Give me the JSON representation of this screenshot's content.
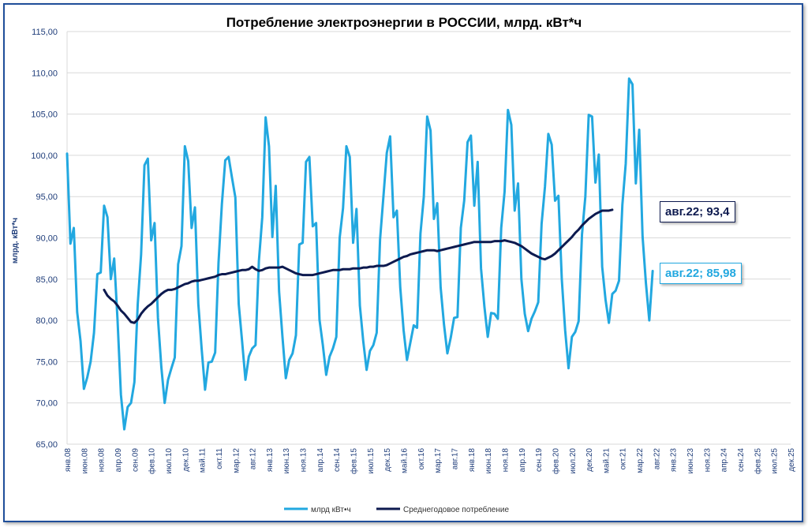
{
  "chart_data": {
    "type": "line",
    "title": "Потребление электроэнергии в РОССИИ, млрд. кВт*ч",
    "ylabel": "млрд. кВт*ч",
    "xlabel": "",
    "ylim": [
      65,
      115
    ],
    "y_ticks": [
      "65,00",
      "70,00",
      "75,00",
      "80,00",
      "85,00",
      "90,00",
      "95,00",
      "100,00",
      "105,00",
      "110,00",
      "115,00"
    ],
    "x_ticks": [
      "янв.08",
      "июн.08",
      "ноя.08",
      "апр.09",
      "сен.09",
      "фев.10",
      "июл.10",
      "дек.10",
      "май.11",
      "окт.11",
      "мар.12",
      "авг.12",
      "янв.13",
      "июн.13",
      "ноя.13",
      "апр.14",
      "сен.14",
      "фев.15",
      "июл.15",
      "дек.15",
      "май.16",
      "окт.16",
      "мар.17",
      "авг.17",
      "янв.18",
      "июн.18",
      "ноя.18",
      "апр.19",
      "сен.19",
      "фев.20",
      "июл.20",
      "дек.20",
      "май.21",
      "окт.21",
      "мар.22",
      "авг.22",
      "янв.23",
      "июн.23",
      "ноя.23",
      "апр.24",
      "сен.24",
      "фев.25",
      "июл.25",
      "дек.25"
    ],
    "grid": true,
    "legend_position": "bottom",
    "series": [
      {
        "name": "млрд кВт•ч",
        "color": "#22a8e0",
        "values": [
          100.2,
          89.3,
          91.2,
          81.0,
          77.5,
          71.7,
          73.1,
          75.0,
          78.5,
          85.6,
          85.8,
          93.9,
          92.5,
          85.0,
          87.5,
          80.0,
          71.0,
          66.8,
          69.5,
          70.0,
          72.5,
          82.0,
          88.0,
          98.8,
          99.6,
          89.7,
          91.8,
          80.3,
          74.4,
          70.0,
          72.8,
          74.2,
          75.5,
          86.8,
          89.0,
          101.1,
          99.3,
          91.2,
          93.7,
          82.0,
          76.5,
          71.6,
          74.9,
          75.0,
          76.1,
          87.0,
          94.1,
          99.4,
          99.8,
          97.3,
          94.9,
          82.0,
          77.5,
          72.8,
          75.6,
          76.6,
          77.0,
          87.2,
          92.5,
          104.6,
          101.1,
          90.1,
          96.3,
          83.5,
          78.0,
          73.0,
          75.2,
          76.0,
          78.2,
          89.2,
          89.4,
          99.2,
          99.8,
          91.4,
          91.8,
          80.1,
          77.0,
          73.4,
          75.6,
          76.6,
          78.0,
          90.0,
          93.6,
          101.1,
          99.8,
          89.4,
          93.5,
          81.8,
          77.5,
          74.0,
          76.3,
          77.0,
          78.5,
          89.8,
          95.0,
          100.3,
          102.3,
          92.5,
          93.3,
          84.0,
          78.8,
          75.2,
          77.3,
          79.4,
          79.1,
          90.5,
          95.0,
          104.7,
          103.0,
          92.3,
          94.2,
          84.0,
          79.5,
          76.0,
          77.9,
          80.3,
          80.4,
          91.2,
          94.5,
          101.6,
          102.4,
          93.9,
          99.2,
          86.3,
          81.7,
          78.0,
          80.9,
          80.8,
          80.2,
          91.2,
          95.6,
          105.5,
          103.7,
          93.3,
          96.6,
          85.0,
          80.8,
          78.7,
          80.2,
          81.1,
          82.2,
          91.7,
          96.2,
          102.6,
          101.3,
          94.5,
          95.1,
          85.0,
          78.8,
          74.2,
          78.0,
          78.6,
          79.9,
          90.4,
          95.0,
          104.9,
          104.7,
          96.7,
          100.1,
          86.5,
          82.5,
          79.7,
          83.2,
          83.6,
          84.8,
          94.0,
          99.0,
          109.3,
          108.6,
          96.6,
          103.1,
          90.2,
          84.5,
          80.0,
          85.98
        ]
      },
      {
        "name": "Среднегодовое потребление",
        "color": "#0d1a4f",
        "start_index": 11,
        "values": [
          83.7,
          83.0,
          82.6,
          82.3,
          81.8,
          81.2,
          80.8,
          80.3,
          79.8,
          79.7,
          80.1,
          80.8,
          81.3,
          81.7,
          82.0,
          82.4,
          82.8,
          83.2,
          83.5,
          83.7,
          83.7,
          83.8,
          84.0,
          84.2,
          84.4,
          84.5,
          84.7,
          84.8,
          84.8,
          84.9,
          85.0,
          85.1,
          85.2,
          85.3,
          85.5,
          85.6,
          85.6,
          85.7,
          85.8,
          85.9,
          86.0,
          86.1,
          86.1,
          86.2,
          86.5,
          86.2,
          86.0,
          86.1,
          86.3,
          86.4,
          86.4,
          86.4,
          86.4,
          86.5,
          86.3,
          86.1,
          85.9,
          85.7,
          85.6,
          85.5,
          85.5,
          85.5,
          85.5,
          85.6,
          85.7,
          85.8,
          85.9,
          86.0,
          86.1,
          86.1,
          86.1,
          86.2,
          86.2,
          86.2,
          86.3,
          86.3,
          86.3,
          86.4,
          86.4,
          86.5,
          86.5,
          86.6,
          86.6,
          86.6,
          86.7,
          86.9,
          87.1,
          87.3,
          87.5,
          87.7,
          87.8,
          88.0,
          88.1,
          88.2,
          88.3,
          88.4,
          88.5,
          88.5,
          88.5,
          88.4,
          88.5,
          88.6,
          88.7,
          88.8,
          88.9,
          89.0,
          89.1,
          89.2,
          89.3,
          89.4,
          89.5,
          89.5,
          89.5,
          89.5,
          89.5,
          89.5,
          89.6,
          89.6,
          89.6,
          89.7,
          89.6,
          89.5,
          89.4,
          89.2,
          89.0,
          88.7,
          88.4,
          88.1,
          87.9,
          87.7,
          87.5,
          87.4,
          87.6,
          87.8,
          88.1,
          88.5,
          88.9,
          89.3,
          89.7,
          90.1,
          90.6,
          91.0,
          91.5,
          91.9,
          92.3,
          92.6,
          92.9,
          93.1,
          93.3,
          93.3,
          93.3,
          93.4
        ]
      }
    ],
    "annotations": [
      {
        "text": "авг.22; 93,4",
        "color": "#0d1a4f",
        "x": "авг.22",
        "y": 93.4
      },
      {
        "text": "авг.22;  85,98",
        "color": "#22a8e0",
        "x": "авг.22",
        "y": 85.98
      }
    ]
  }
}
